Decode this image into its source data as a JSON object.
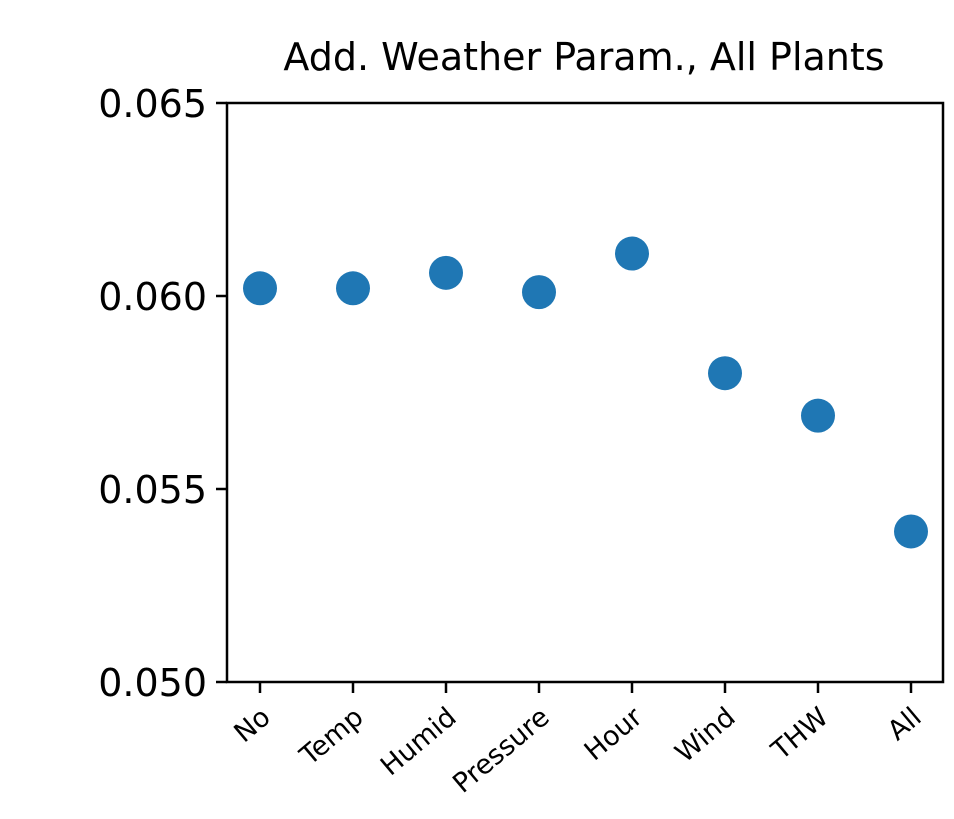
{
  "chart_data": {
    "type": "scatter",
    "title": "Add. Weather Param., All Plants",
    "xlabel": "",
    "ylabel": "",
    "categories": [
      "No",
      "Temp",
      "Humid",
      "Pressure",
      "Hour",
      "Wind",
      "THW",
      "All"
    ],
    "values": [
      0.0602,
      0.0602,
      0.0606,
      0.0601,
      0.0611,
      0.058,
      0.0569,
      0.0539
    ],
    "ylim": [
      0.05,
      0.065
    ],
    "yticks": [
      0.05,
      0.055,
      0.06,
      0.065
    ],
    "ytick_labels": [
      "0.050",
      "0.055",
      "0.060",
      "0.065"
    ],
    "grid": false,
    "legend": "none",
    "color": "#1f77b4"
  }
}
